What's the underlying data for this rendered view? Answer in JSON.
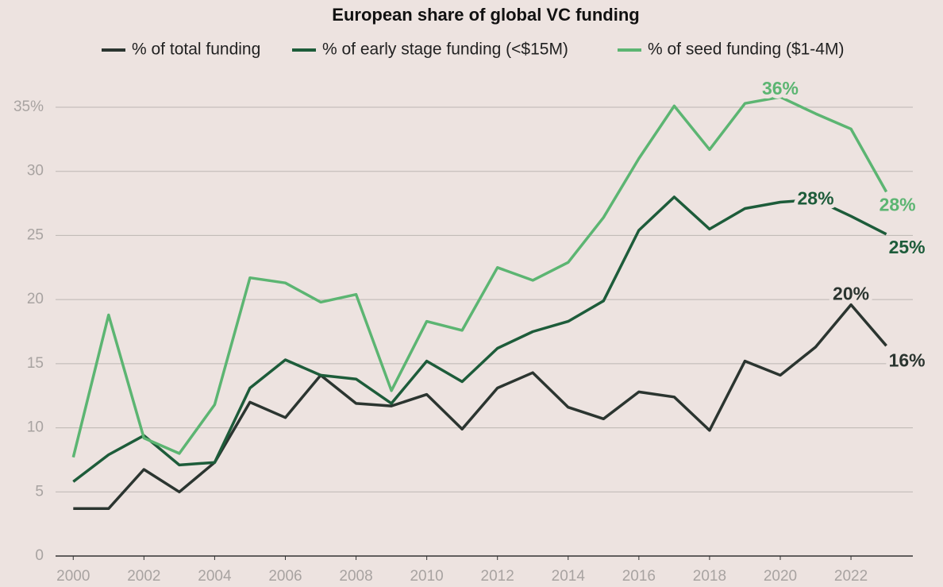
{
  "chart_data": {
    "type": "line",
    "title": "European share of global VC funding",
    "x": [
      2000,
      2001,
      2002,
      2003,
      2004,
      2005,
      2006,
      2007,
      2008,
      2009,
      2010,
      2011,
      2012,
      2013,
      2014,
      2015,
      2016,
      2017,
      2018,
      2019,
      2020,
      2021,
      2022,
      2023
    ],
    "series": [
      {
        "name": "% of total funding",
        "color": "#2b3530",
        "values": [
          3.7,
          3.7,
          6.75,
          5.0,
          7.3,
          12.0,
          10.8,
          14.1,
          11.9,
          11.7,
          12.6,
          9.9,
          13.1,
          14.3,
          11.6,
          10.7,
          12.8,
          12.4,
          9.8,
          15.2,
          14.1,
          16.3,
          19.6,
          16.4
        ],
        "value_labels": [
          null,
          null,
          null,
          null,
          null,
          null,
          null,
          null,
          null,
          null,
          null,
          null,
          null,
          null,
          null,
          null,
          null,
          null,
          null,
          null,
          null,
          null,
          "20%",
          "16%"
        ]
      },
      {
        "name": "% of early stage funding (<$15M)",
        "color": "#1d5c3a",
        "values": [
          5.8,
          7.9,
          9.4,
          7.1,
          7.3,
          13.1,
          15.3,
          14.1,
          13.8,
          11.9,
          15.2,
          13.6,
          16.2,
          17.5,
          18.3,
          19.9,
          25.4,
          28.0,
          25.5,
          27.1,
          27.6,
          27.8,
          26.5,
          25.1
        ],
        "value_labels": [
          null,
          null,
          null,
          null,
          null,
          null,
          null,
          null,
          null,
          null,
          null,
          null,
          null,
          null,
          null,
          null,
          null,
          null,
          null,
          null,
          null,
          "28%",
          null,
          "25%"
        ]
      },
      {
        "name": "% of seed funding ($1-4M)",
        "color": "#5cb572",
        "values": [
          7.7,
          18.8,
          9.2,
          8.0,
          11.8,
          21.7,
          21.3,
          19.8,
          20.4,
          12.9,
          18.3,
          17.6,
          22.5,
          21.5,
          22.9,
          26.4,
          31.0,
          35.1,
          31.7,
          35.3,
          35.8,
          34.5,
          33.3,
          28.4
        ],
        "value_labels": [
          null,
          null,
          null,
          null,
          null,
          null,
          null,
          null,
          null,
          null,
          null,
          null,
          null,
          null,
          null,
          null,
          null,
          null,
          null,
          null,
          "36%",
          null,
          null,
          "28%"
        ]
      }
    ],
    "xlim": [
      1999.5,
      2023.75
    ],
    "xticks": [
      2000,
      2002,
      2004,
      2006,
      2008,
      2010,
      2012,
      2014,
      2016,
      2018,
      2020,
      2022
    ],
    "ylim": [
      0,
      35
    ],
    "yticks": [
      0,
      5,
      10,
      15,
      20,
      25,
      30,
      {
        "value": 35,
        "label": "35%"
      }
    ],
    "grid": true
  }
}
